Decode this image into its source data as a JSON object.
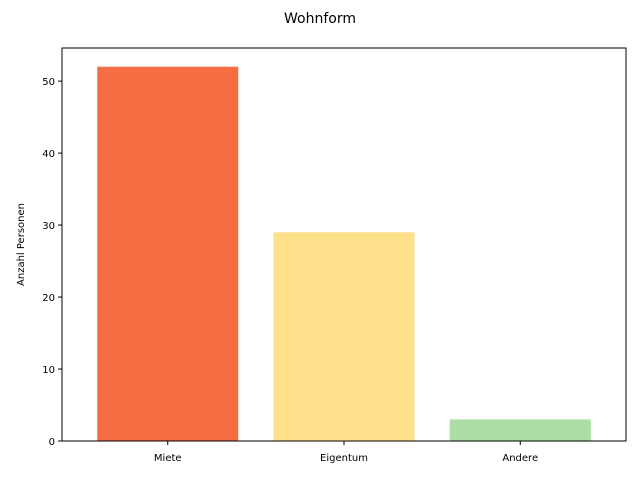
{
  "chart_data": {
    "type": "bar",
    "title": "Wohnform",
    "xlabel": "",
    "ylabel": "Anzahl Personen",
    "categories": [
      "Miete",
      "Eigentum",
      "Andere"
    ],
    "values": [
      52,
      29,
      3
    ],
    "colors": [
      "#f46d43",
      "#fee08b",
      "#abdda4"
    ],
    "ylim": [
      0,
      54.6
    ],
    "yticks": [
      0,
      10,
      20,
      30,
      40,
      50
    ],
    "grid": false,
    "legend": "none"
  }
}
